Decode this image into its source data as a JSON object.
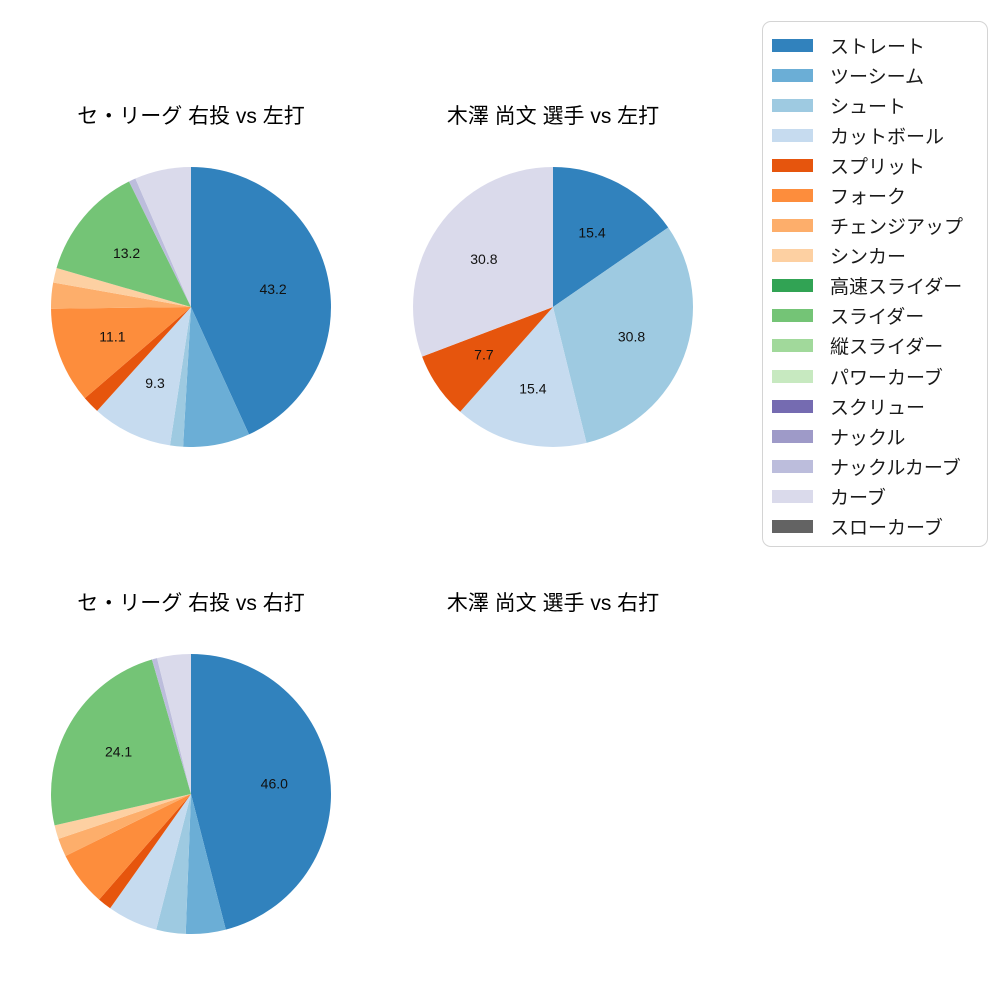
{
  "styles": {
    "background": "#ffffff",
    "text_color": "#000000",
    "legend_border_color": "#d4d4d4"
  },
  "legend": {
    "position": "upper right",
    "items": [
      {
        "label": "ストレート",
        "color": "#3182bd"
      },
      {
        "label": "ツーシーム",
        "color": "#6baed6"
      },
      {
        "label": "シュート",
        "color": "#9ecae1"
      },
      {
        "label": "カットボール",
        "color": "#c6dbef"
      },
      {
        "label": "スプリット",
        "color": "#e6550d"
      },
      {
        "label": "フォーク",
        "color": "#fd8d3c"
      },
      {
        "label": "チェンジアップ",
        "color": "#fdae6b"
      },
      {
        "label": "シンカー",
        "color": "#fdd0a2"
      },
      {
        "label": "高速スライダー",
        "color": "#31a354"
      },
      {
        "label": "スライダー",
        "color": "#74c476"
      },
      {
        "label": "縦スライダー",
        "color": "#a1d99b"
      },
      {
        "label": "パワーカーブ",
        "color": "#c7e9c0"
      },
      {
        "label": "スクリュー",
        "color": "#756bb1"
      },
      {
        "label": "ナックル",
        "color": "#9e9ac8"
      },
      {
        "label": "ナックルカーブ",
        "color": "#bcbddc"
      },
      {
        "label": "カーブ",
        "color": "#dadaeb"
      },
      {
        "label": "スローカーブ",
        "color": "#636363"
      }
    ]
  },
  "chart_data": [
    {
      "type": "pie",
      "title": "セ・リーグ 右投 vs 左打",
      "start_angle_deg": 0,
      "direction": "clockwise",
      "label_radius_fraction": 0.6,
      "labels": [
        "ストレート",
        "ツーシーム",
        "シュート",
        "カットボール",
        "スプリット",
        "フォーク",
        "チェンジアップ",
        "シンカー",
        "スライダー",
        "ナックルカーブ",
        "カーブ"
      ],
      "values": [
        43.2,
        7.7,
        1.5,
        9.3,
        2.0,
        11.1,
        3.0,
        1.7,
        13.2,
        0.8,
        6.5
      ],
      "shown_value_labels": [
        "43.2",
        "",
        "",
        "9.3",
        "",
        "11.1",
        "",
        "",
        "13.2",
        "",
        ""
      ]
    },
    {
      "type": "pie",
      "title": "木澤 尚文 選手 vs 左打",
      "start_angle_deg": 0,
      "direction": "clockwise",
      "label_radius_fraction": 0.6,
      "labels": [
        "ストレート",
        "シュート",
        "カットボール",
        "スプリット",
        "カーブ"
      ],
      "values": [
        15.4,
        30.8,
        15.4,
        7.7,
        30.8
      ],
      "shown_value_labels": [
        "15.4",
        "30.8",
        "15.4",
        "7.7",
        "30.8"
      ]
    },
    {
      "type": "pie",
      "title": "セ・リーグ 右投 vs 右打",
      "start_angle_deg": 0,
      "direction": "clockwise",
      "label_radius_fraction": 0.6,
      "labels": [
        "ストレート",
        "ツーシーム",
        "シュート",
        "カットボール",
        "スプリット",
        "フォーク",
        "チェンジアップ",
        "シンカー",
        "スライダー",
        "ナックルカーブ",
        "カーブ"
      ],
      "values": [
        46.0,
        4.6,
        3.4,
        5.8,
        1.6,
        6.3,
        2.1,
        1.6,
        24.1,
        0.6,
        3.9
      ],
      "shown_value_labels": [
        "46.0",
        "",
        "",
        "",
        "",
        "",
        "",
        "",
        "24.1",
        "",
        ""
      ]
    },
    {
      "type": "pie",
      "title": "木澤 尚文 選手 vs 右打",
      "start_angle_deg": 0,
      "direction": "clockwise",
      "label_radius_fraction": 0.6,
      "labels": [],
      "values": [],
      "shown_value_labels": []
    }
  ]
}
